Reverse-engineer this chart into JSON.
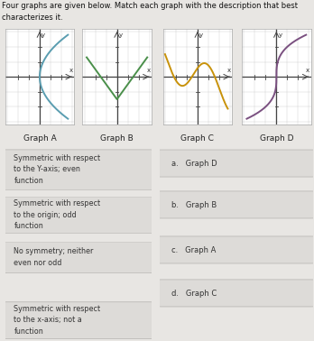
{
  "title_line1": "Four graphs are given below. Match each graph with the description that best",
  "title_line2": "characterizes it.",
  "graphs": [
    {
      "label": "Graph A",
      "color": "#5a9db0"
    },
    {
      "label": "Graph B",
      "color": "#4a8f4a"
    },
    {
      "label": "Graph C",
      "color": "#c8920a"
    },
    {
      "label": "Graph D",
      "color": "#7a5080"
    }
  ],
  "left_descriptions": [
    "Symmetric with respect\nto the Y-axis; even\nfunction",
    "Symmetric with respect\nto the origin; odd\nfunction",
    "No symmetry; neither\neven nor odd",
    "Symmetric with respect\nto the x-axis; not a\nfunction"
  ],
  "right_answers": [
    "a.   Graph D",
    "b.   Graph B",
    "c.   Graph A",
    "d.   Graph C"
  ],
  "bg_color": "#e8e6e3",
  "box_color": "#dddbd8",
  "fig_bg": "#e8e6e3",
  "grid_color": "#cccccc",
  "axis_color": "#444444"
}
